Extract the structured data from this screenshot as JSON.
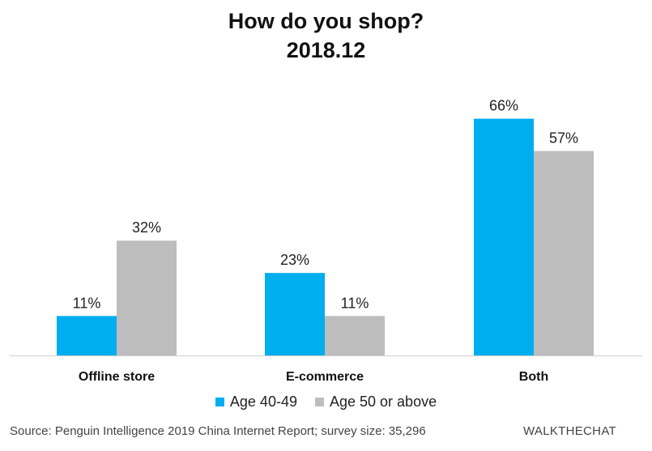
{
  "title_line1": "How do you shop?",
  "title_line2": "2018.12",
  "chart_data": {
    "type": "bar",
    "categories": [
      "Offline store",
      "E-commerce",
      "Both"
    ],
    "series": [
      {
        "name": "Age 40-49",
        "values": [
          11,
          23,
          66
        ],
        "labels": [
          "11%",
          "23%",
          "66%"
        ],
        "color": "#00aeef"
      },
      {
        "name": "Age 50 or above",
        "values": [
          32,
          11,
          57
        ],
        "labels": [
          "32%",
          "11%",
          "57%"
        ],
        "color": "#bdbdbd"
      }
    ],
    "ylim": [
      0,
      100
    ],
    "unit": "%",
    "grid": false,
    "legend_position": "bottom"
  },
  "legend": [
    {
      "label": "Age 40-49",
      "color": "#00aeef"
    },
    {
      "label": "Age 50 or above",
      "color": "#bdbdbd"
    }
  ],
  "source": "Source: Penguin Intelligence 2019 China Internet Report; survey size: 35,296",
  "brand": "WALKTHECHAT"
}
